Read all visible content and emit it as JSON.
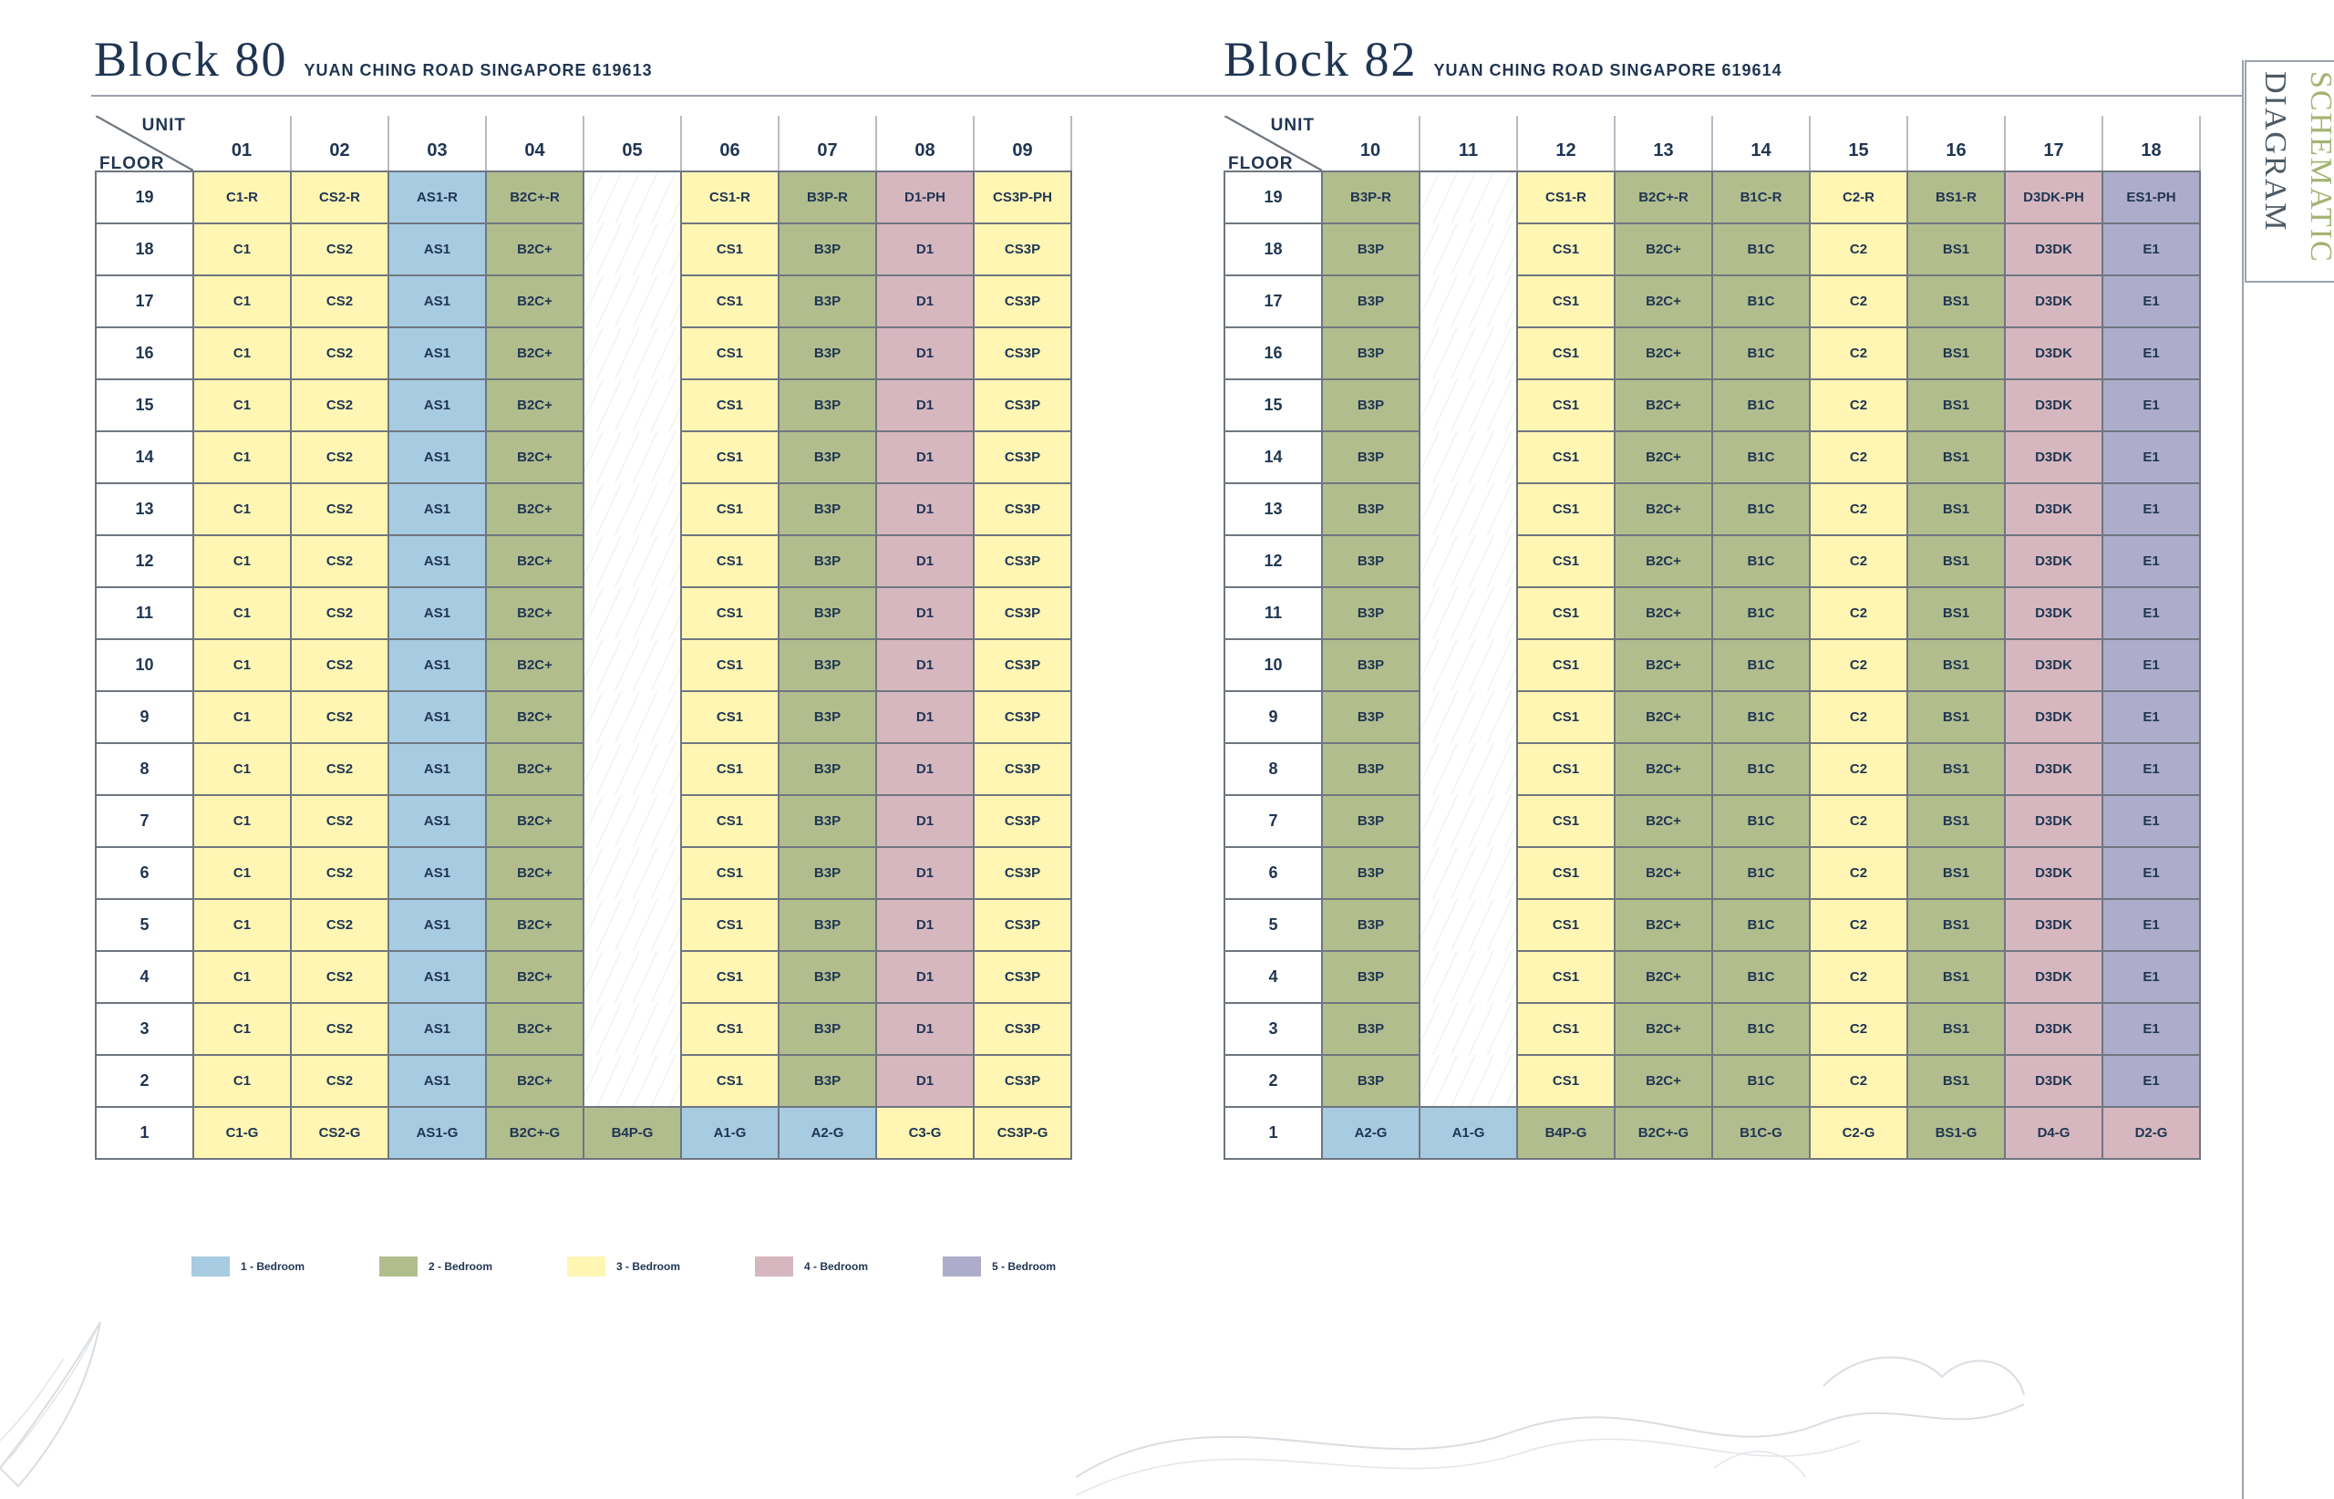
{
  "sidebar_title": {
    "line1": "SCHEMATIC",
    "line2": "DIAGRAM"
  },
  "corner": {
    "unit": "UNIT",
    "floor": "FLOOR"
  },
  "blocks": [
    {
      "name": "Block 80",
      "address": "YUAN CHING ROAD SINGAPORE 619613",
      "units": [
        "01",
        "02",
        "03",
        "04",
        "05",
        "06",
        "07",
        "08",
        "09"
      ],
      "top_row": [
        "C1-R",
        "CS2-R",
        "AS1-R",
        "B2C+-R",
        "",
        "CS1-R",
        "B3P-R",
        "D1-PH",
        "CS3P-PH"
      ],
      "typical_row": [
        "C1",
        "CS2",
        "AS1",
        "B2C+",
        "",
        "CS1",
        "B3P",
        "D1",
        "CS3P"
      ],
      "ground_row": [
        "C1-G",
        "CS2-G",
        "AS1-G",
        "B2C+-G",
        "B4P-G",
        "A1-G",
        "A2-G",
        "C3-G",
        "CS3P-G"
      ],
      "colors_typical": [
        "t3",
        "t3",
        "t1",
        "t2",
        "vc",
        "t3",
        "t2",
        "t4",
        "t3"
      ],
      "colors_ground": [
        "t3",
        "t3",
        "t1",
        "t2",
        "t2",
        "t1",
        "t1",
        "t3",
        "t3"
      ]
    },
    {
      "name": "Block 82",
      "address": "YUAN CHING ROAD SINGAPORE 619614",
      "units": [
        "10",
        "11",
        "12",
        "13",
        "14",
        "15",
        "16",
        "17",
        "18"
      ],
      "top_row": [
        "B3P-R",
        "",
        "CS1-R",
        "B2C+-R",
        "B1C-R",
        "C2-R",
        "BS1-R",
        "D3DK-PH",
        "ES1-PH"
      ],
      "typical_row": [
        "B3P",
        "",
        "CS1",
        "B2C+",
        "B1C",
        "C2",
        "BS1",
        "D3DK",
        "E1"
      ],
      "ground_row": [
        "A2-G",
        "A1-G",
        "B4P-G",
        "B2C+-G",
        "B1C-G",
        "C2-G",
        "BS1-G",
        "D4-G",
        "D2-G"
      ],
      "colors_typical": [
        "t2",
        "vc",
        "t3",
        "t2",
        "t2",
        "t3",
        "t2",
        "t4",
        "t5"
      ],
      "colors_ground": [
        "t1",
        "t1",
        "t2",
        "t2",
        "t2",
        "t3",
        "t2",
        "t4",
        "t4"
      ]
    }
  ],
  "floors_top_to_bottom": [
    "19",
    "18",
    "17",
    "16",
    "15",
    "14",
    "13",
    "12",
    "11",
    "10",
    "9",
    "8",
    "7",
    "6",
    "5",
    "4",
    "3",
    "2",
    "1"
  ],
  "legend": [
    {
      "label": "1 - Bedroom",
      "color": "#a7cbe1"
    },
    {
      "label": "2 - Bedroom",
      "color": "#b2bd8e"
    },
    {
      "label": "3 - Bedroom",
      "color": "#fff6b4"
    },
    {
      "label": "4 - Bedroom",
      "color": "#d6b7bf"
    },
    {
      "label": "5 - Bedroom",
      "color": "#adadcb"
    }
  ]
}
